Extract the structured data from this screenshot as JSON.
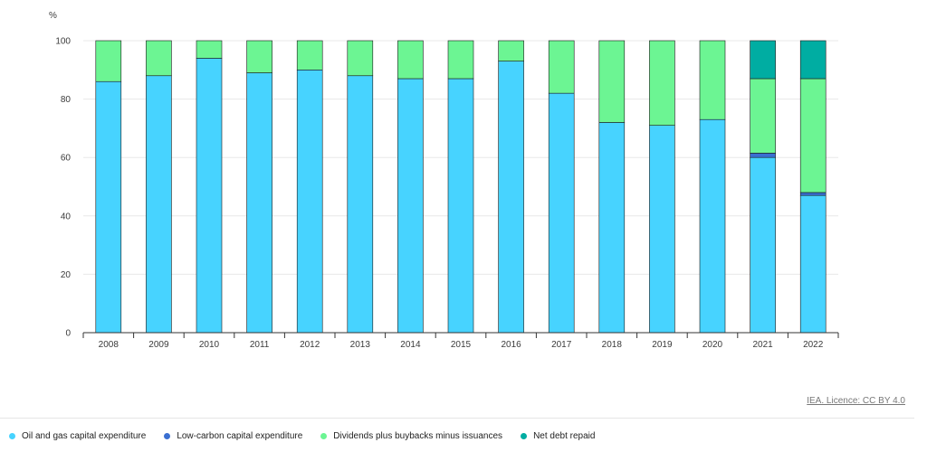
{
  "chart_data": {
    "type": "bar",
    "stacked": true,
    "unit_label": "%",
    "categories": [
      "2008",
      "2009",
      "2010",
      "2011",
      "2012",
      "2013",
      "2014",
      "2015",
      "2016",
      "2017",
      "2018",
      "2019",
      "2020",
      "2021",
      "2022"
    ],
    "series": [
      {
        "name": "Oil and gas capital expenditure",
        "color": "#47d3ff",
        "values": [
          86,
          88,
          94,
          89,
          90,
          88,
          87,
          87,
          93,
          82,
          72,
          71,
          73,
          60,
          47
        ]
      },
      {
        "name": "Low-carbon capital expenditure",
        "color": "#3a6fd1",
        "values": [
          0,
          0,
          0,
          0,
          0,
          0,
          0,
          0,
          0,
          0,
          0,
          0,
          0,
          1.5,
          1
        ]
      },
      {
        "name": "Dividends plus buybacks minus issuances",
        "color": "#6cf593",
        "values": [
          14,
          12,
          6,
          11,
          10,
          12,
          13,
          13,
          7,
          18,
          28,
          29,
          27,
          25.5,
          39
        ]
      },
      {
        "name": "Net debt repaid",
        "color": "#00ada2",
        "values": [
          0,
          0,
          0,
          0,
          0,
          0,
          0,
          0,
          0,
          0,
          0,
          0,
          0,
          13,
          13
        ]
      }
    ],
    "y_ticks": [
      0,
      20,
      40,
      60,
      80,
      100
    ],
    "ylim": [
      0,
      100
    ],
    "grid": true,
    "legend_position": "bottom-left"
  },
  "credit": "IEA. Licence: CC BY 4.0"
}
